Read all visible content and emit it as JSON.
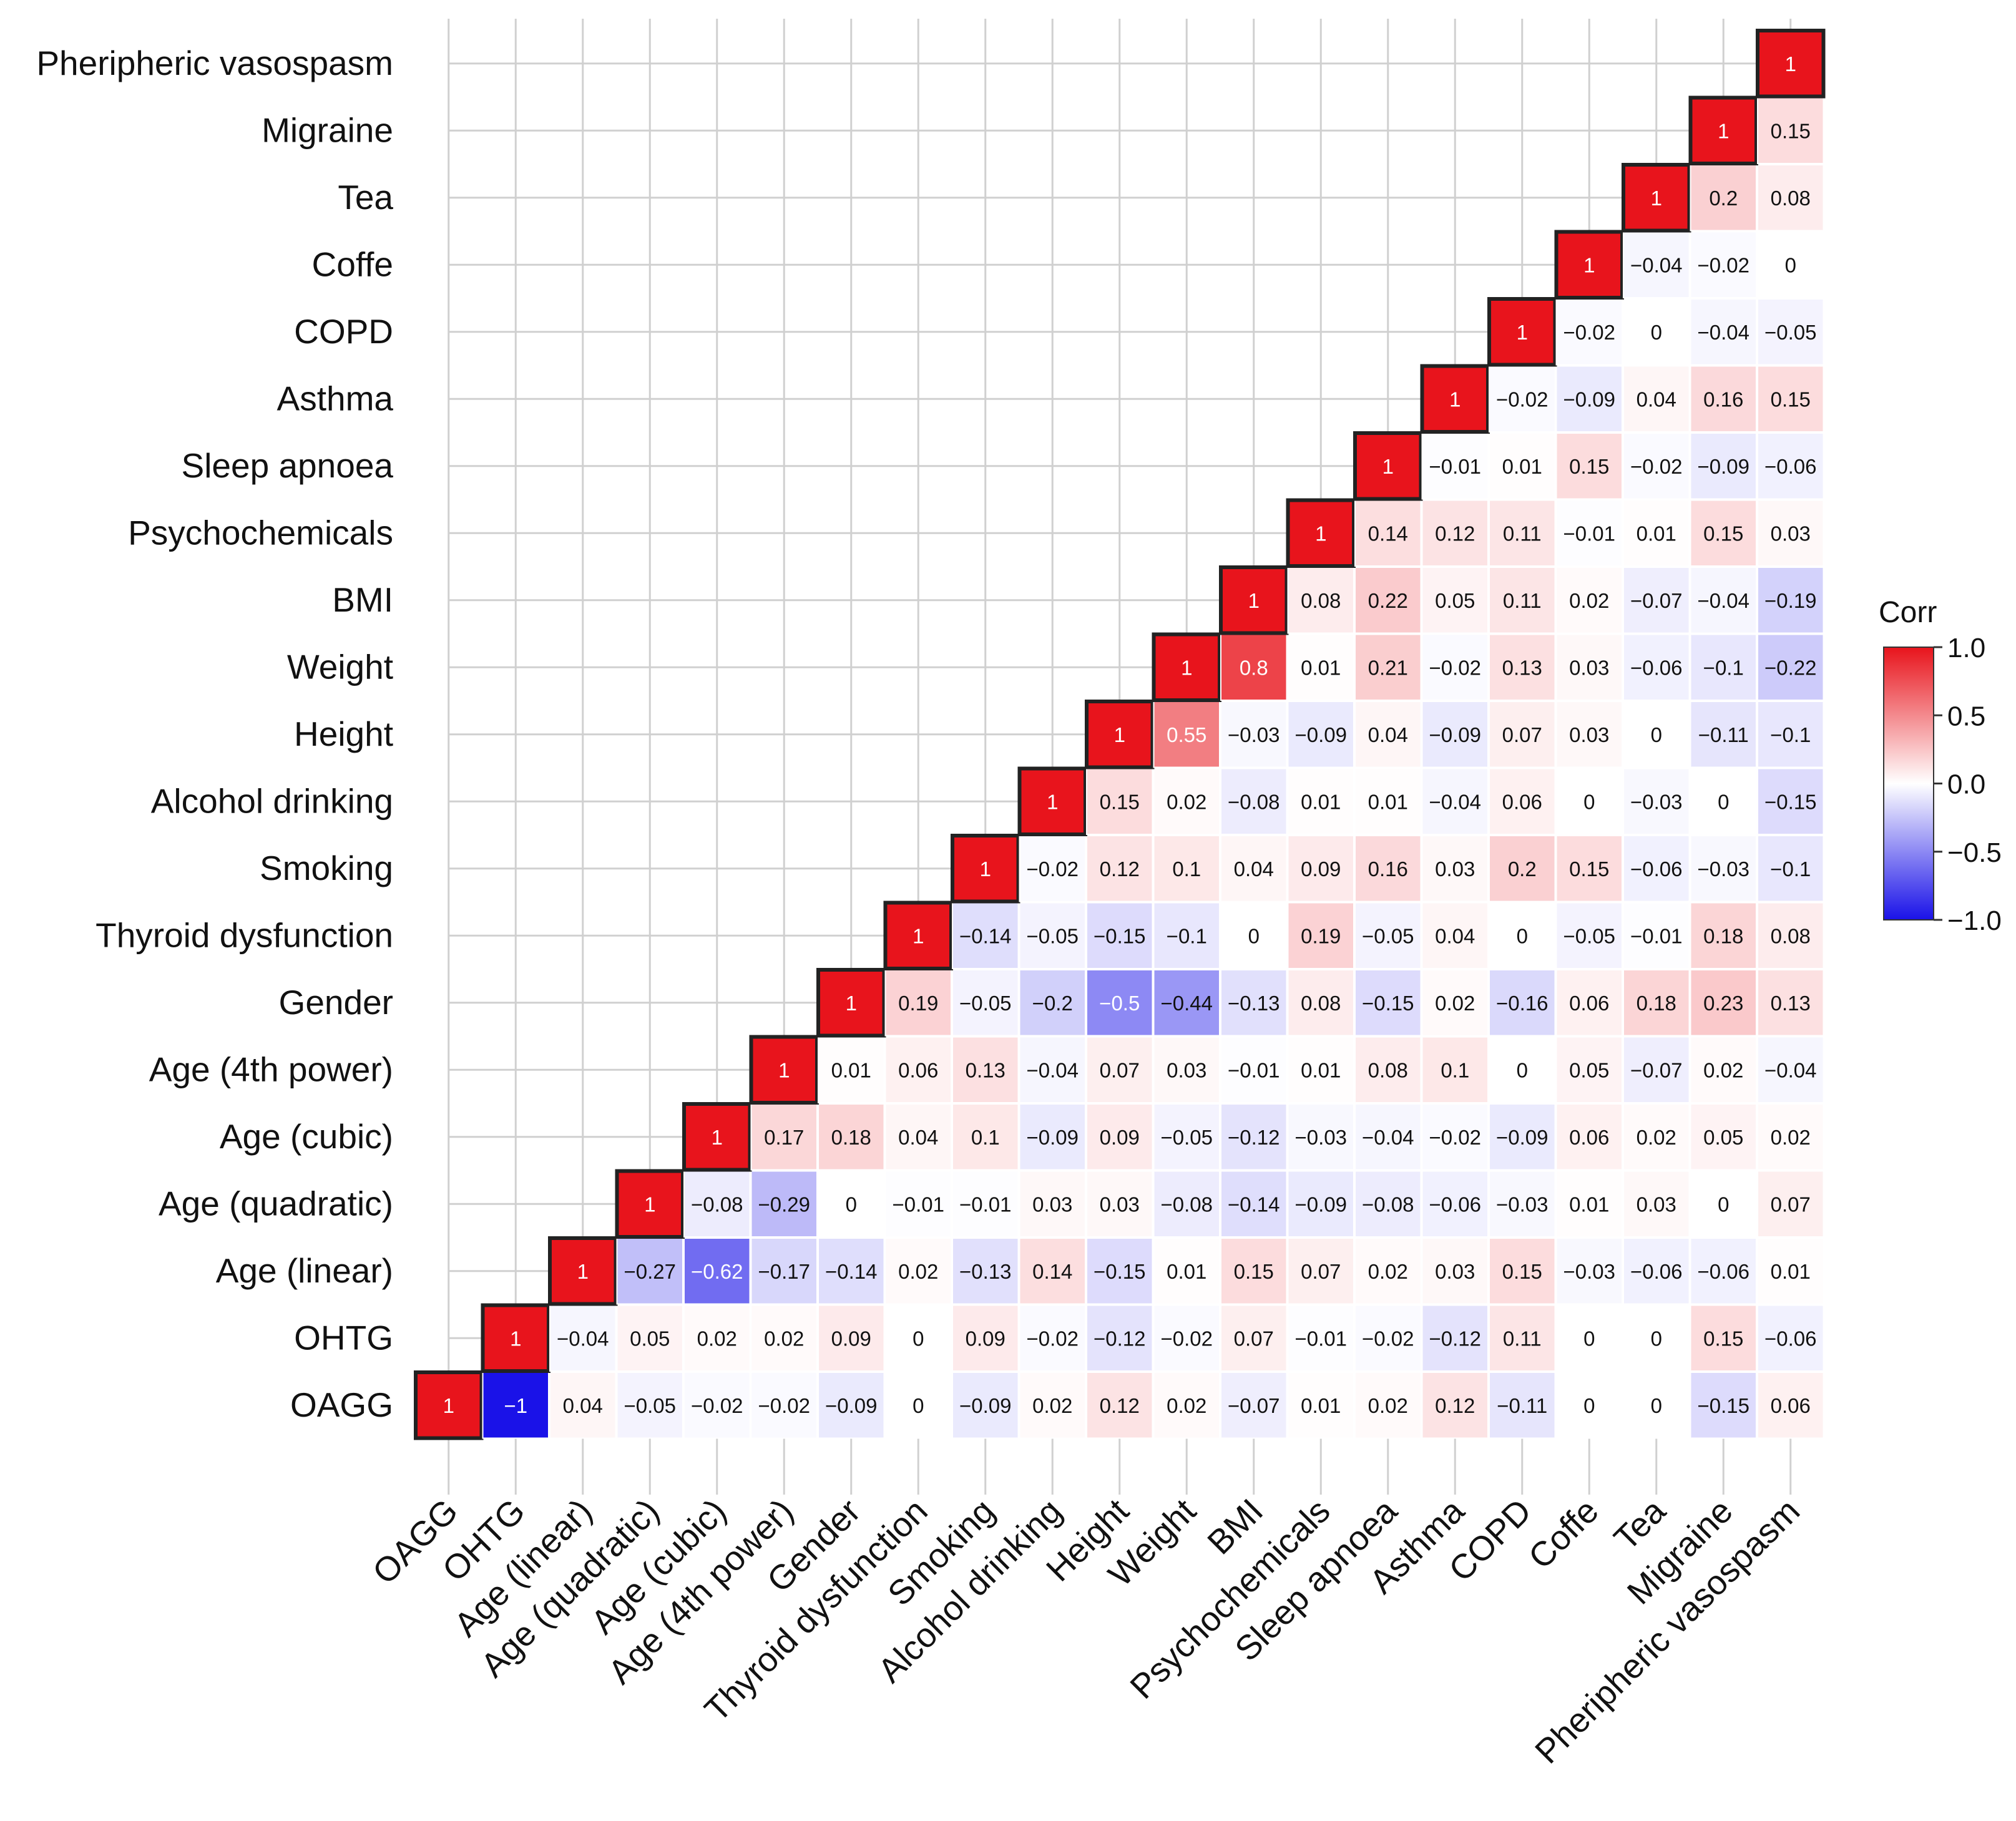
{
  "chart_data": {
    "type": "heatmap",
    "subtype": "lower-triangle correlation matrix",
    "variables": [
      "OAGG",
      "OHTG",
      "Age (linear)",
      "Age (quadratic)",
      "Age (cubic)",
      "Age (4th power)",
      "Gender",
      "Thyroid dysfunction",
      "Smoking",
      "Alcohol drinking",
      "Height",
      "Weight",
      "BMI",
      "Psychochemicals",
      "Sleep apnoea",
      "Asthma",
      "COPD",
      "Coffe",
      "Tea",
      "Migraine",
      "Pheripheric vasospasm"
    ],
    "x_labels": [
      "OAGG",
      "OHTG",
      "Age (linear)",
      "Age (quadratic)",
      "Age (cubic)",
      "Age (4th power)",
      "Gender",
      "Thyroid dysfunction",
      "Smoking",
      "Alcohol drinking",
      "Height",
      "Weight",
      "BMI",
      "Psychochemicals",
      "Sleep apnoea",
      "Asthma",
      "COPD",
      "Coffe",
      "Tea",
      "Migraine",
      "Pheripheric vasospasm"
    ],
    "y_labels": [
      "OAGG",
      "OHTG",
      "Age (linear)",
      "Age (quadratic)",
      "Age (cubic)",
      "Age (4th power)",
      "Gender",
      "Thyroid dysfunction",
      "Smoking",
      "Alcohol drinking",
      "Height",
      "Weight",
      "BMI",
      "Psychochemicals",
      "Sleep apnoea",
      "Asthma",
      "COPD",
      "Coffe",
      "Tea",
      "Migraine",
      "Pheripheric vasospasm"
    ],
    "rows": [
      {
        "var": "OAGG",
        "values": [
          1,
          -1,
          0.04,
          -0.05,
          -0.02,
          -0.02,
          -0.09,
          0,
          -0.09,
          0.02,
          0.12,
          0.02,
          -0.07,
          0.01,
          0.02,
          0.12,
          -0.11,
          0,
          0,
          -0.15,
          0.06
        ]
      },
      {
        "var": "OHTG",
        "values": [
          1,
          -0.04,
          0.05,
          0.02,
          0.02,
          0.09,
          0,
          0.09,
          -0.02,
          -0.12,
          -0.02,
          0.07,
          -0.01,
          -0.02,
          -0.12,
          0.11,
          0,
          0,
          0.15,
          -0.06
        ]
      },
      {
        "var": "Age (linear)",
        "values": [
          1,
          -0.27,
          -0.62,
          -0.17,
          -0.14,
          0.02,
          -0.13,
          0.14,
          -0.15,
          0.01,
          0.15,
          0.07,
          0.02,
          0.03,
          0.15,
          -0.03,
          -0.06,
          -0.06,
          0.01
        ]
      },
      {
        "var": "Age (quadratic)",
        "values": [
          1,
          -0.08,
          -0.29,
          0,
          -0.01,
          -0.01,
          0.03,
          0.03,
          -0.08,
          -0.14,
          -0.09,
          -0.08,
          -0.06,
          -0.03,
          0.01,
          0.03,
          0,
          0.07
        ]
      },
      {
        "var": "Age (cubic)",
        "values": [
          1,
          0.17,
          0.18,
          0.04,
          0.1,
          -0.09,
          0.09,
          -0.05,
          -0.12,
          -0.03,
          -0.04,
          -0.02,
          -0.09,
          0.06,
          0.02,
          0.05,
          0.02
        ]
      },
      {
        "var": "Age (4th power)",
        "values": [
          1,
          0.01,
          0.06,
          0.13,
          -0.04,
          0.07,
          0.03,
          -0.01,
          0.01,
          0.08,
          0.1,
          0,
          0.05,
          -0.07,
          0.02,
          -0.04
        ]
      },
      {
        "var": "Gender",
        "values": [
          1,
          0.19,
          -0.05,
          -0.2,
          -0.5,
          -0.44,
          -0.13,
          0.08,
          -0.15,
          0.02,
          -0.16,
          0.06,
          0.18,
          0.23,
          0.13
        ]
      },
      {
        "var": "Thyroid dysfunction",
        "values": [
          1,
          -0.14,
          -0.05,
          -0.15,
          -0.1,
          0,
          0.19,
          -0.05,
          0.04,
          0,
          -0.05,
          -0.01,
          0.18,
          0.08
        ]
      },
      {
        "var": "Smoking",
        "values": [
          1,
          -0.02,
          0.12,
          0.1,
          0.04,
          0.09,
          0.16,
          0.03,
          0.2,
          0.15,
          -0.06,
          -0.03,
          -0.1
        ]
      },
      {
        "var": "Alcohol drinking",
        "values": [
          1,
          0.15,
          0.02,
          -0.08,
          0.01,
          0.01,
          -0.04,
          0.06,
          0,
          -0.03,
          0,
          -0.15
        ]
      },
      {
        "var": "Height",
        "values": [
          1,
          0.55,
          -0.03,
          -0.09,
          0.04,
          -0.09,
          0.07,
          0.03,
          0,
          -0.11,
          -0.1
        ]
      },
      {
        "var": "Weight",
        "values": [
          1,
          0.8,
          0.01,
          0.21,
          -0.02,
          0.13,
          0.03,
          -0.06,
          -0.1,
          -0.22
        ]
      },
      {
        "var": "BMI",
        "values": [
          1,
          0.08,
          0.22,
          0.05,
          0.11,
          0.02,
          -0.07,
          -0.04,
          -0.19
        ]
      },
      {
        "var": "Psychochemicals",
        "values": [
          1,
          0.14,
          0.12,
          0.11,
          -0.01,
          0.01,
          0.15,
          0.03
        ]
      },
      {
        "var": "Sleep apnoea",
        "values": [
          1,
          -0.01,
          0.01,
          0.15,
          -0.02,
          -0.09,
          -0.06
        ]
      },
      {
        "var": "Asthma",
        "values": [
          1,
          -0.02,
          -0.09,
          0.04,
          0.16,
          0.15
        ]
      },
      {
        "var": "COPD",
        "values": [
          1,
          -0.02,
          0,
          -0.04,
          -0.05
        ]
      },
      {
        "var": "Coffe",
        "values": [
          1,
          -0.04,
          -0.02,
          0
        ]
      },
      {
        "var": "Tea",
        "values": [
          1,
          0.2,
          0.08
        ]
      },
      {
        "var": "Migraine",
        "values": [
          1,
          0.15
        ]
      },
      {
        "var": "Pheripheric vasospasm",
        "values": [
          1
        ]
      }
    ],
    "legend": {
      "title": "Corr",
      "ticks": [
        1.0,
        0.5,
        0.0,
        -0.5,
        -1.0
      ],
      "tick_labels": [
        "1.0",
        "0.5",
        "0.0",
        "−0.5",
        "−1.0"
      ],
      "range": [
        -1,
        1
      ],
      "position": "right"
    },
    "colors": {
      "positive": "#e8141c",
      "neutral": "#ffffff",
      "negative": "#1a12e8",
      "grid": "#d0d0d0",
      "diag_border": "#222222"
    }
  }
}
